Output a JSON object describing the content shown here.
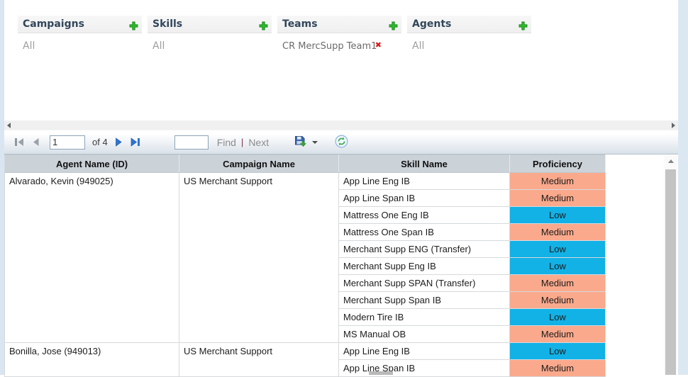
{
  "filters": {
    "panels": [
      {
        "id": "campaigns",
        "title": "Campaigns",
        "items": [
          {
            "label": "All",
            "removable": false
          }
        ]
      },
      {
        "id": "skills",
        "title": "Skills",
        "items": [
          {
            "label": "All",
            "removable": false
          }
        ]
      },
      {
        "id": "teams",
        "title": "Teams",
        "items": [
          {
            "label": "CR MercSupp Team1",
            "removable": true
          }
        ]
      },
      {
        "id": "agents",
        "title": "Agents",
        "items": [
          {
            "label": "All",
            "removable": false
          }
        ]
      }
    ]
  },
  "toolbar": {
    "page_number": "1",
    "of_label": "of 4",
    "find_value": "",
    "find_label": "Find",
    "separator": "|",
    "next_label": "Next"
  },
  "table": {
    "columns": [
      "Agent Name (ID)",
      "Campaign Name",
      "Skill Name",
      "Proficiency"
    ],
    "groups": [
      {
        "agent": "Alvarado, Kevin (949025)",
        "campaign": "US Merchant Support",
        "skills": [
          {
            "name": "App Line Eng IB",
            "proficiency": "Medium"
          },
          {
            "name": "App Line Span IB",
            "proficiency": "Medium"
          },
          {
            "name": "Mattress One Eng IB",
            "proficiency": "Low"
          },
          {
            "name": "Mattress One Span IB",
            "proficiency": "Medium"
          },
          {
            "name": "Merchant Supp ENG (Transfer)",
            "proficiency": "Low"
          },
          {
            "name": "Merchant Supp Eng IB",
            "proficiency": "Low"
          },
          {
            "name": "Merchant Supp SPAN (Transfer)",
            "proficiency": "Medium"
          },
          {
            "name": "Merchant Supp Span IB",
            "proficiency": "Medium"
          },
          {
            "name": "Modern Tire IB",
            "proficiency": "Low"
          },
          {
            "name": "MS Manual OB",
            "proficiency": "Medium"
          }
        ]
      },
      {
        "agent": "Bonilla, Jose (949013)",
        "campaign": "US Merchant Support",
        "skills": [
          {
            "name": "App Line Eng IB",
            "proficiency": "Low"
          },
          {
            "name": "App Line Span IB",
            "proficiency": "Medium"
          }
        ]
      }
    ]
  },
  "colors": {
    "proficiency": {
      "medium": "#FAA98C",
      "low": "#12B1E6"
    },
    "accent_green": "#2DB92D",
    "remove_red": "#E01515",
    "table_header_bg": "#CBD2D8",
    "page_margin": "#DCE8F1"
  }
}
